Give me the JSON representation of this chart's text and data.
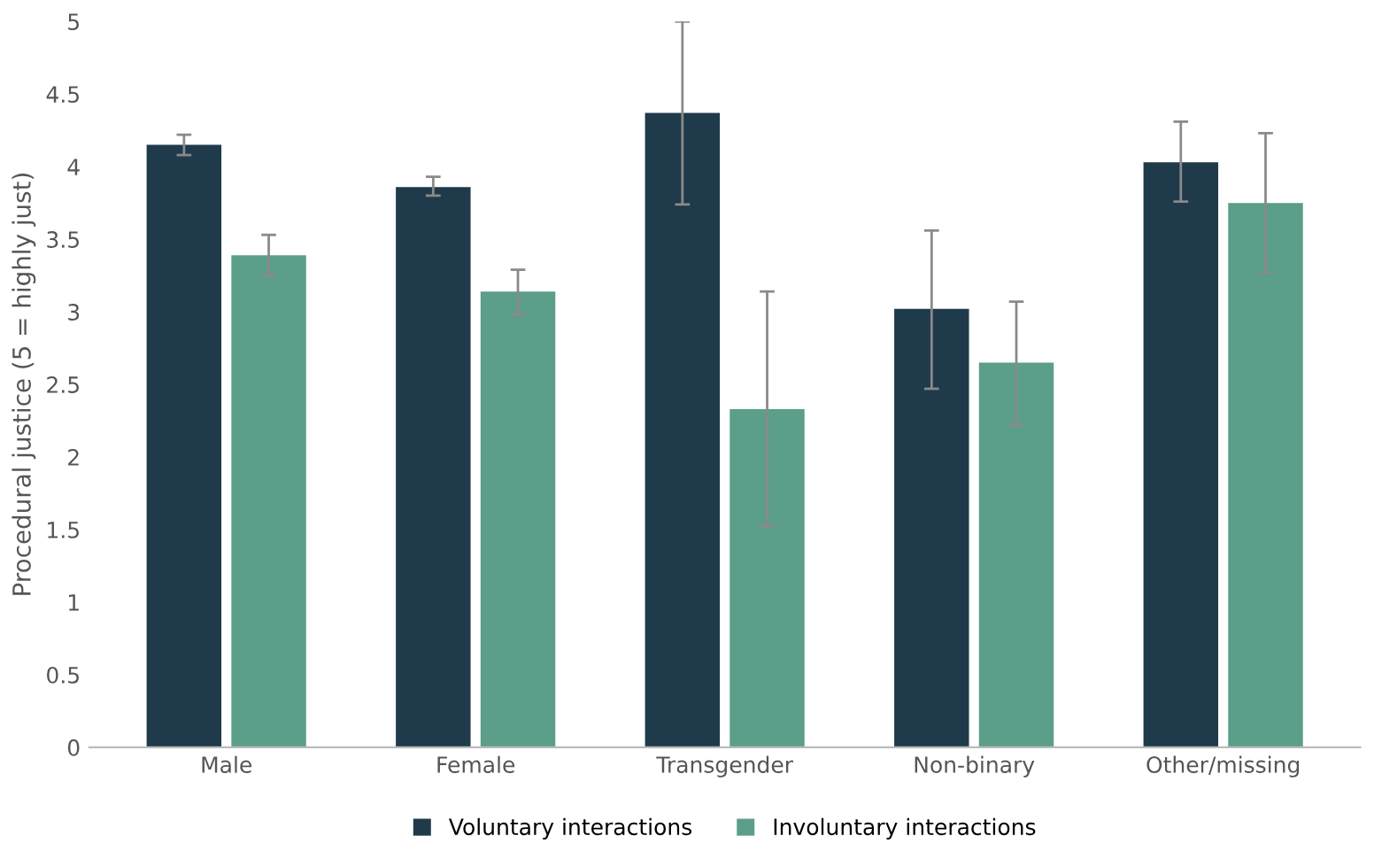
{
  "chart_data": {
    "type": "bar",
    "ylabel": "Procedural justice (5 = highly just)",
    "categories": [
      "Male",
      "Female",
      "Transgender",
      "Non-binary",
      "Other/missing"
    ],
    "series": [
      {
        "name": "Voluntary interactions",
        "color": "#1f3a4b",
        "values": [
          4.15,
          3.86,
          4.37,
          3.02,
          4.03
        ],
        "errors": [
          [
            4.08,
            4.22
          ],
          [
            3.8,
            3.93
          ],
          [
            3.74,
            5.0
          ],
          [
            2.47,
            3.56
          ],
          [
            3.76,
            4.31
          ]
        ]
      },
      {
        "name": "Involuntary interactions",
        "color": "#5b9e89",
        "values": [
          3.39,
          3.14,
          2.33,
          2.65,
          3.75
        ],
        "errors": [
          [
            3.25,
            3.53
          ],
          [
            2.98,
            3.29
          ],
          [
            1.52,
            3.14
          ],
          [
            2.22,
            3.07
          ],
          [
            3.27,
            4.23
          ]
        ]
      }
    ],
    "ylim": [
      0,
      5
    ],
    "yticks": [
      0,
      {
        "value": 0.5,
        "label": "0.5"
      },
      1,
      {
        "value": 1.5,
        "label": "1.5"
      },
      2,
      {
        "value": 2.5,
        "label": "2.5"
      },
      3,
      {
        "value": 3.5,
        "label": "3.5"
      },
      4,
      {
        "value": 4.5,
        "label": "4.5"
      },
      5
    ],
    "grid": false,
    "legend": "bottom"
  }
}
